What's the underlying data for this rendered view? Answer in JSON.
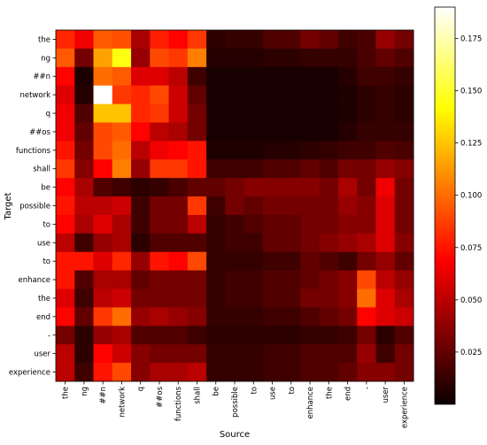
{
  "chart_data": {
    "type": "heatmap",
    "xlabel": "Source",
    "ylabel": "Target",
    "x_tokens": [
      "the",
      "ng",
      "##n",
      "network",
      "q",
      "##os",
      "functions",
      "shall",
      "be",
      "possible",
      "to",
      "use",
      "to",
      "enhance",
      "the",
      "end",
      "-",
      "user",
      "experience"
    ],
    "y_tokens": [
      "the",
      "ng",
      "##n",
      "network",
      "q",
      "##os",
      "functions",
      "shall",
      "be",
      "possible",
      "to",
      "use",
      "to",
      "enhance",
      "the",
      "end",
      "-",
      "user",
      "experience"
    ],
    "colorscale": "hot",
    "colorbar": {
      "min": 0.0,
      "max": 0.19,
      "ticks": [
        0.025,
        0.05,
        0.075,
        0.1,
        0.125,
        0.15,
        0.175
      ],
      "tick_labels": [
        "0.025",
        "0.050",
        "0.075",
        "0.100",
        "0.125",
        "0.150",
        "0.175"
      ]
    },
    "values": [
      [
        0.08,
        0.065,
        0.095,
        0.092,
        0.045,
        0.078,
        0.07,
        0.085,
        0.01,
        0.012,
        0.012,
        0.02,
        0.02,
        0.03,
        0.025,
        0.015,
        0.018,
        0.04,
        0.03
      ],
      [
        0.095,
        0.03,
        0.115,
        0.145,
        0.04,
        0.09,
        0.085,
        0.105,
        0.008,
        0.008,
        0.008,
        0.01,
        0.01,
        0.012,
        0.012,
        0.012,
        0.018,
        0.025,
        0.02
      ],
      [
        0.07,
        0.005,
        0.1,
        0.095,
        0.06,
        0.06,
        0.05,
        0.015,
        0.004,
        0.004,
        0.004,
        0.004,
        0.004,
        0.004,
        0.004,
        0.008,
        0.015,
        0.015,
        0.012
      ],
      [
        0.06,
        0.008,
        0.19,
        0.085,
        0.08,
        0.09,
        0.055,
        0.025,
        0.004,
        0.004,
        0.004,
        0.004,
        0.004,
        0.004,
        0.004,
        0.006,
        0.01,
        0.012,
        0.01
      ],
      [
        0.065,
        0.02,
        0.125,
        0.125,
        0.08,
        0.085,
        0.055,
        0.03,
        0.004,
        0.004,
        0.004,
        0.004,
        0.004,
        0.004,
        0.004,
        0.006,
        0.01,
        0.012,
        0.01
      ],
      [
        0.065,
        0.025,
        0.09,
        0.095,
        0.07,
        0.05,
        0.045,
        0.03,
        0.004,
        0.004,
        0.004,
        0.004,
        0.004,
        0.004,
        0.004,
        0.008,
        0.012,
        0.012,
        0.012
      ],
      [
        0.075,
        0.03,
        0.09,
        0.1,
        0.05,
        0.065,
        0.07,
        0.075,
        0.006,
        0.006,
        0.006,
        0.008,
        0.008,
        0.01,
        0.012,
        0.015,
        0.015,
        0.02,
        0.018
      ],
      [
        0.085,
        0.035,
        0.07,
        0.105,
        0.04,
        0.085,
        0.085,
        0.075,
        0.015,
        0.015,
        0.015,
        0.02,
        0.02,
        0.025,
        0.02,
        0.03,
        0.03,
        0.04,
        0.035
      ],
      [
        0.07,
        0.045,
        0.02,
        0.015,
        0.01,
        0.012,
        0.018,
        0.025,
        0.025,
        0.03,
        0.035,
        0.035,
        0.035,
        0.035,
        0.03,
        0.045,
        0.03,
        0.065,
        0.03
      ],
      [
        0.075,
        0.05,
        0.05,
        0.055,
        0.015,
        0.03,
        0.03,
        0.085,
        0.015,
        0.03,
        0.025,
        0.03,
        0.03,
        0.03,
        0.03,
        0.04,
        0.035,
        0.06,
        0.03
      ],
      [
        0.07,
        0.045,
        0.06,
        0.045,
        0.015,
        0.03,
        0.03,
        0.05,
        0.012,
        0.015,
        0.02,
        0.025,
        0.025,
        0.03,
        0.03,
        0.035,
        0.035,
        0.06,
        0.03
      ],
      [
        0.05,
        0.015,
        0.04,
        0.045,
        0.01,
        0.02,
        0.02,
        0.02,
        0.012,
        0.015,
        0.015,
        0.025,
        0.025,
        0.03,
        0.035,
        0.04,
        0.045,
        0.06,
        0.035
      ],
      [
        0.075,
        0.075,
        0.06,
        0.08,
        0.04,
        0.075,
        0.07,
        0.09,
        0.012,
        0.012,
        0.012,
        0.015,
        0.015,
        0.025,
        0.02,
        0.015,
        0.03,
        0.04,
        0.025
      ],
      [
        0.075,
        0.02,
        0.045,
        0.045,
        0.025,
        0.03,
        0.03,
        0.03,
        0.012,
        0.015,
        0.015,
        0.02,
        0.02,
        0.025,
        0.03,
        0.035,
        0.09,
        0.05,
        0.04
      ],
      [
        0.06,
        0.015,
        0.05,
        0.055,
        0.03,
        0.03,
        0.03,
        0.03,
        0.012,
        0.015,
        0.015,
        0.02,
        0.02,
        0.03,
        0.03,
        0.035,
        0.1,
        0.06,
        0.045
      ],
      [
        0.07,
        0.025,
        0.085,
        0.1,
        0.04,
        0.045,
        0.04,
        0.035,
        0.012,
        0.012,
        0.012,
        0.015,
        0.015,
        0.02,
        0.025,
        0.03,
        0.07,
        0.06,
        0.055
      ],
      [
        0.03,
        0.01,
        0.04,
        0.045,
        0.02,
        0.02,
        0.02,
        0.015,
        0.01,
        0.01,
        0.01,
        0.01,
        0.01,
        0.012,
        0.012,
        0.015,
        0.03,
        0.01,
        0.02
      ],
      [
        0.05,
        0.01,
        0.07,
        0.055,
        0.035,
        0.03,
        0.03,
        0.03,
        0.012,
        0.012,
        0.012,
        0.015,
        0.015,
        0.02,
        0.02,
        0.02,
        0.04,
        0.015,
        0.03
      ],
      [
        0.05,
        0.015,
        0.075,
        0.09,
        0.035,
        0.045,
        0.045,
        0.05,
        0.012,
        0.012,
        0.012,
        0.015,
        0.015,
        0.02,
        0.02,
        0.025,
        0.035,
        0.035,
        0.03
      ]
    ]
  }
}
